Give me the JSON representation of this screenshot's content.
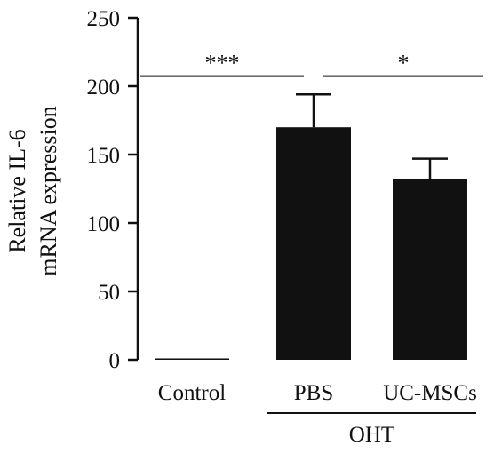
{
  "chart_data": {
    "type": "bar",
    "title": "",
    "ylabel_lines": [
      "Relative IL-6",
      "mRNA expression"
    ],
    "categories": [
      "Control",
      "PBS",
      "UC-MSCs"
    ],
    "values": [
      1,
      170,
      132
    ],
    "errors": [
      0,
      24,
      15
    ],
    "ylim": [
      0,
      250
    ],
    "yticks": [
      0,
      50,
      100,
      150,
      200,
      250
    ],
    "bar_color": "#111111",
    "group": {
      "label": "OHT",
      "categories": [
        "PBS",
        "UC-MSCs"
      ]
    },
    "significance": [
      {
        "from": "Control",
        "to": "PBS",
        "label": "***",
        "y": 208
      },
      {
        "from": "PBS",
        "to": "UC-MSCs",
        "label": "*",
        "y": 208
      }
    ],
    "grid": false,
    "legend": "none"
  }
}
